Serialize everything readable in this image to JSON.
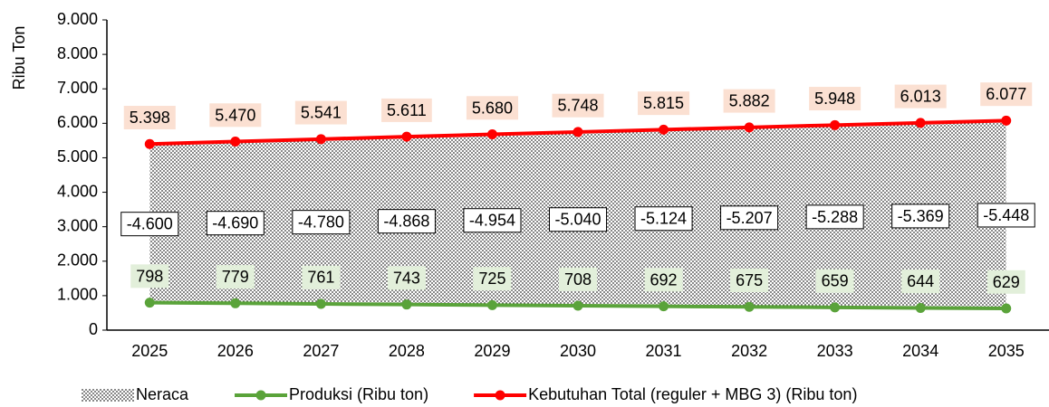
{
  "chart_data": {
    "type": "line",
    "y_label": "Ribu Ton",
    "categories": [
      "2025",
      "2026",
      "2027",
      "2028",
      "2029",
      "2030",
      "2031",
      "2032",
      "2033",
      "2034",
      "2035"
    ],
    "series": [
      {
        "name": "Neraca",
        "type": "area",
        "color": "#333333",
        "values": [
          -4600,
          -4690,
          -4780,
          -4868,
          -4954,
          -5040,
          -5124,
          -5207,
          -5288,
          -5369,
          -5448
        ],
        "value_labels": [
          "-4.600",
          "-4.690",
          "-4.780",
          "-4.868",
          "-4.954",
          "-5.040",
          "-5.124",
          "-5.207",
          "-5.288",
          "-5.369",
          "-5.448"
        ]
      },
      {
        "name": "Produksi (Ribu ton)",
        "color": "#5aa33a",
        "values": [
          798,
          779,
          761,
          743,
          725,
          708,
          692,
          675,
          659,
          644,
          629
        ]
      },
      {
        "name": "Kebutuhan Total (reguler + MBG 3) (Ribu ton)",
        "color": "#ff0000",
        "values": [
          5398,
          5470,
          5541,
          5611,
          5680,
          5748,
          5815,
          5882,
          5948,
          6013,
          6077
        ],
        "value_labels": [
          "5.398",
          "5.470",
          "5.541",
          "5.611",
          "5.680",
          "5.748",
          "5.815",
          "5.882",
          "5.948",
          "6.013",
          "6.077"
        ]
      }
    ],
    "ylim": [
      0,
      9000
    ],
    "yticks": [
      0,
      {
        "value": 1000,
        "label": "1.000"
      },
      {
        "value": 2000,
        "label": "2.000"
      },
      {
        "value": 3000,
        "label": "3.000"
      },
      {
        "value": 4000,
        "label": "4.000"
      },
      {
        "value": 5000,
        "label": "5.000"
      },
      {
        "value": 6000,
        "label": "6.000"
      },
      {
        "value": 7000,
        "label": "7.000"
      },
      {
        "value": 8000,
        "label": "8.000"
      },
      {
        "value": 9000,
        "label": "9.000"
      }
    ],
    "legend": "bottom"
  }
}
